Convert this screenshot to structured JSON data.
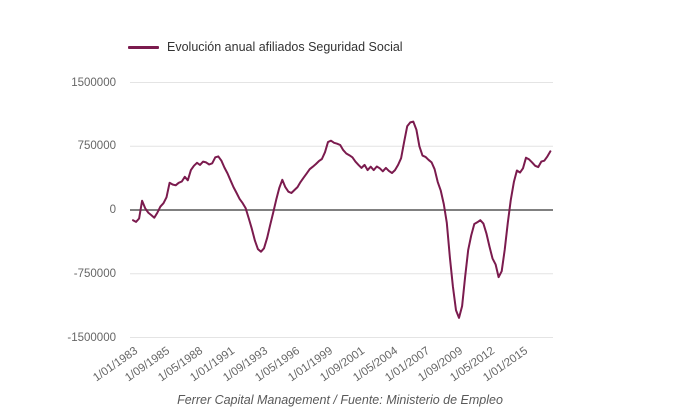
{
  "legend": {
    "series_label": "Evolución anual afiliados Seguridad Social"
  },
  "footer": {
    "credit": "Ferrer Capital Management / Fuente: Ministerio de Empleo"
  },
  "colors": {
    "series": "#7b1b4e",
    "zero_line": "#808080",
    "grid": "#e4e4e4",
    "axis_label": "#666666",
    "legend_text": "#333333",
    "footer_text": "#595959",
    "background": "#ffffff"
  },
  "chart_data": {
    "type": "line",
    "title": "Evolución anual afiliados Seguridad Social",
    "xlabel": "",
    "ylabel": "",
    "grid": "horizontal-only",
    "legend_position": "top-left",
    "y_axis": {
      "range": [
        -1500000,
        1500000
      ],
      "ticks": [
        {
          "label": "1500000",
          "v": 1500000
        },
        {
          "label": "750000",
          "v": 750000
        },
        {
          "label": "0",
          "v": 0
        },
        {
          "label": "-750000",
          "v": -750000
        },
        {
          "label": "-1500000",
          "v": -1500000
        }
      ]
    },
    "x_axis": {
      "range_years": [
        1983.0,
        2017.25
      ],
      "ticks": [
        {
          "label": "1/01/1983",
          "t": 1983.0
        },
        {
          "label": "1/09/1985",
          "t": 1985.667
        },
        {
          "label": "1/05/1988",
          "t": 1988.333
        },
        {
          "label": "1/01/1991",
          "t": 1991.0
        },
        {
          "label": "1/09/1993",
          "t": 1993.667
        },
        {
          "label": "1/05/1996",
          "t": 1996.333
        },
        {
          "label": "1/01/1999",
          "t": 1999.0
        },
        {
          "label": "1/09/2001",
          "t": 2001.667
        },
        {
          "label": "1/05/2004",
          "t": 2004.333
        },
        {
          "label": "1/01/2007",
          "t": 2007.0
        },
        {
          "label": "1/09/2009",
          "t": 2009.667
        },
        {
          "label": "1/05/2012",
          "t": 2012.333
        },
        {
          "label": "1/01/2015",
          "t": 2015.0
        }
      ]
    },
    "series": [
      {
        "name": "Evolución anual afiliados Seguridad Social",
        "x_start_year": 1983.0,
        "x_step_years": 0.25,
        "values": [
          -120000,
          -140000,
          -100000,
          110000,
          20000,
          -30000,
          -60000,
          -90000,
          -30000,
          40000,
          80000,
          150000,
          320000,
          300000,
          290000,
          320000,
          335000,
          390000,
          350000,
          470000,
          520000,
          555000,
          530000,
          570000,
          560000,
          535000,
          550000,
          620000,
          630000,
          580000,
          500000,
          430000,
          350000,
          270000,
          200000,
          130000,
          80000,
          20000,
          -100000,
          -220000,
          -360000,
          -460000,
          -490000,
          -450000,
          -330000,
          -180000,
          -30000,
          120000,
          260000,
          355000,
          270000,
          215000,
          200000,
          235000,
          270000,
          330000,
          380000,
          430000,
          480000,
          510000,
          540000,
          575000,
          600000,
          680000,
          800000,
          815000,
          790000,
          780000,
          765000,
          705000,
          665000,
          645000,
          620000,
          570000,
          530000,
          495000,
          530000,
          470000,
          510000,
          470000,
          512000,
          490000,
          455000,
          495000,
          460000,
          435000,
          470000,
          530000,
          610000,
          805000,
          985000,
          1030000,
          1040000,
          945000,
          750000,
          640000,
          625000,
          590000,
          560000,
          480000,
          330000,
          230000,
          70000,
          -150000,
          -560000,
          -900000,
          -1180000,
          -1270000,
          -1130000,
          -790000,
          -470000,
          -300000,
          -165000,
          -145000,
          -120000,
          -160000,
          -275000,
          -430000,
          -570000,
          -640000,
          -790000,
          -720000,
          -470000,
          -150000,
          120000,
          330000,
          465000,
          440000,
          490000,
          615000,
          595000,
          560000,
          520000,
          505000,
          570000,
          580000,
          630000,
          690000
        ]
      }
    ]
  }
}
